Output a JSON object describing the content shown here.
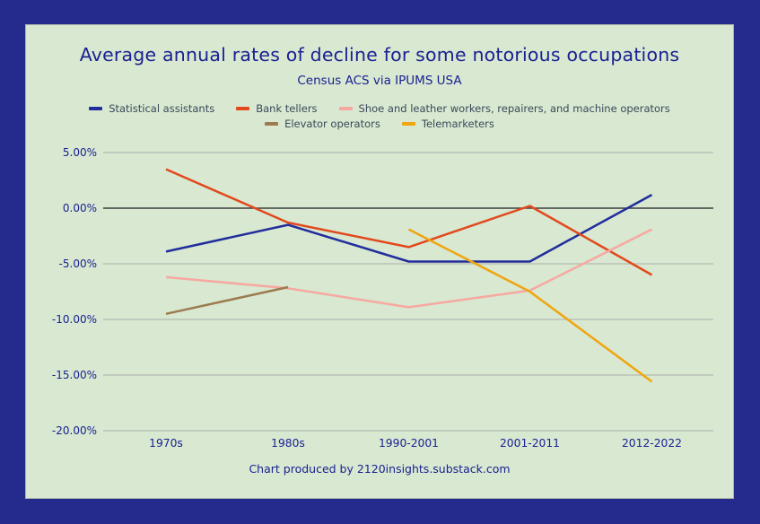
{
  "colors": {
    "frame_border": "#242b8d",
    "panel_background": "#d8e8d1",
    "panel_edge": "#a9b3a6",
    "heading_text": "#1b2191",
    "legend_text": "#3c4858",
    "gridline": "#b5bcb2",
    "zero_line": "#3d3d3d",
    "tick_text": "#1b2191"
  },
  "footer": {
    "credit": "Chart produced by 2120insights.substack.com"
  },
  "chart_data": {
    "type": "line",
    "title": "Average annual rates of decline for some notorious occupations",
    "subtitle": "Census ACS via IPUMS USA",
    "categories": [
      "1970s",
      "1980s",
      "1990-2001",
      "2001-2011",
      "2012-2022"
    ],
    "series": [
      {
        "name": "Statistical assistants",
        "color": "#222d9c",
        "values": [
          -3.9,
          -1.5,
          -4.8,
          -4.8,
          1.2
        ]
      },
      {
        "name": "Bank tellers",
        "color": "#e2491d",
        "values": [
          3.5,
          -1.3,
          -3.5,
          0.2,
          -6.0
        ]
      },
      {
        "name": "Shoe and leather workers, repairers, and machine operators",
        "color": "#f7a8a0",
        "values": [
          -6.2,
          -7.2,
          -8.9,
          -7.4,
          -1.9
        ]
      },
      {
        "name": "Elevator operators",
        "color": "#9d7b51",
        "values": [
          -9.5,
          -7.1,
          null,
          null,
          null
        ]
      },
      {
        "name": "Telemarketers",
        "color": "#f0a50f",
        "values": [
          null,
          null,
          -1.9,
          -7.5,
          -15.6
        ]
      }
    ],
    "ylabel": "",
    "xlabel": "",
    "ylim": [
      -20,
      5
    ],
    "ytick_step": 5,
    "ytick_labels": [
      "5.00%",
      "0.00%",
      "-5.00%",
      "-10.00%",
      "-15.00%",
      "-20.00%"
    ],
    "grid": true,
    "zero_line": true,
    "legend_position": "top",
    "legend_rows": [
      [
        0,
        1,
        2
      ],
      [
        3,
        4
      ]
    ]
  }
}
